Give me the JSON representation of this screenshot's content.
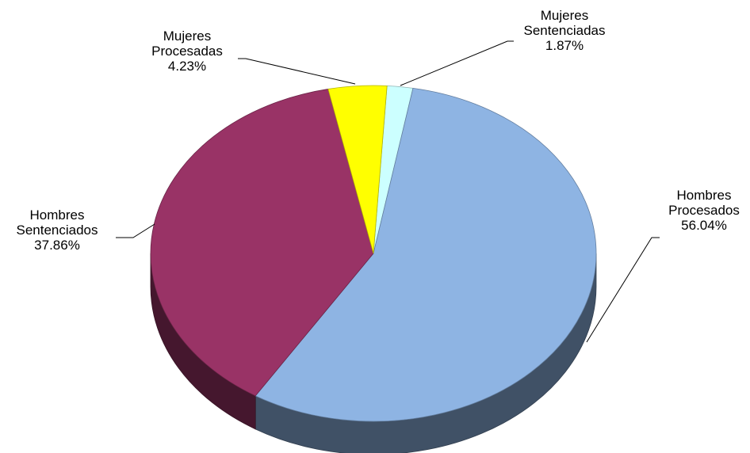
{
  "chart_data": {
    "type": "pie3d",
    "categories": [
      "Mujeres Sentenciadas",
      "Hombres Procesados",
      "Hombres Sentenciados",
      "Mujeres Procesadas"
    ],
    "values": [
      1.87,
      56.04,
      37.86,
      4.23
    ],
    "value_labels": [
      "1.87%",
      "56.04%",
      "37.86%",
      "4.23%"
    ],
    "colors": [
      "#ccffff",
      "#8eb4e3",
      "#993366",
      "#ffff00"
    ]
  }
}
